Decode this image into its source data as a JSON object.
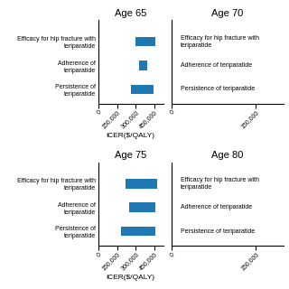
{
  "chart_data": [
    {
      "type": "bar",
      "orientation": "horizontal",
      "title": "Age 65",
      "categories": [
        "Efficacy for hip fracture with\nteriparatide",
        "Adherence of\nteriparatide",
        "Persistence of\nteriparatide"
      ],
      "starts": [
        300000,
        325000,
        265000
      ],
      "values": [
        155000,
        70000,
        175000
      ],
      "xlim": [
        0,
        520000
      ],
      "xticks": [
        0,
        {
          "value": 150000,
          "label": "150,000"
        },
        {
          "value": 300000,
          "label": "300,000"
        },
        {
          "value": 450000,
          "label": "450,000"
        }
      ],
      "x_label": "ICER($/QALY)"
    },
    {
      "type": "bar",
      "orientation": "horizontal",
      "title": "Age 70",
      "annotations": [
        "Efficacy for hip fracture with\nteriparatide",
        "Adherence of teriparatide",
        "Persistence of teriparatide"
      ],
      "xlim": [
        0,
        200000
      ],
      "xticks": [
        0,
        {
          "value": 150000,
          "label": "150,000"
        }
      ],
      "tick_labels": "x"
    },
    {
      "type": "bar",
      "orientation": "horizontal",
      "title": "Age 75",
      "categories": [
        "Efficacy for hip fracture with\nteriparatide",
        "Adherence of\nteriparatide",
        "Persistence of\nteriparatide"
      ],
      "starts": [
        215000,
        245000,
        185000
      ],
      "values": [
        255000,
        215000,
        270000
      ],
      "xlim": [
        0,
        520000
      ],
      "xticks": [
        0,
        {
          "value": 150000,
          "label": "150,000"
        },
        {
          "value": 300000,
          "label": "300,000"
        },
        {
          "value": 450000,
          "label": "450,000"
        }
      ],
      "x_label": "ICER($/QALY)"
    },
    {
      "type": "bar",
      "orientation": "horizontal",
      "title": "Age 80",
      "annotations": [
        "Efficacy for hip fracture with\nteriparatide",
        "Adherence of teriparatide",
        "Persistence of teriparatide"
      ],
      "xlim": [
        0,
        200000
      ],
      "xticks": [
        0,
        {
          "value": 150000,
          "label": "150,000"
        }
      ],
      "tick_labels": "x"
    }
  ]
}
